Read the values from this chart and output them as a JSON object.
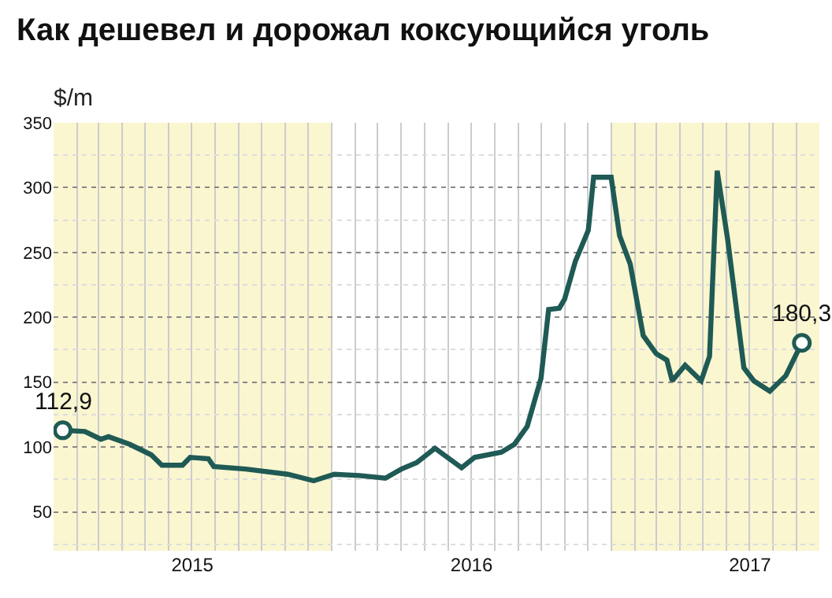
{
  "chart_data": {
    "type": "line",
    "title": "Как дешевел и дорожал коксующийся уголь",
    "ylabel": "$/m",
    "x": [
      "2015-01-13",
      "2015-02-11",
      "2015-03-04",
      "2015-03-14",
      "2015-04-11",
      "2015-05-09",
      "2015-05-23",
      "2015-06-19",
      "2015-06-29",
      "2015-07-23",
      "2015-07-30",
      "2015-09-10",
      "2015-11-04",
      "2015-12-08",
      "2016-01-04",
      "2016-02-06",
      "2016-03-11",
      "2016-04-01",
      "2016-04-21",
      "2016-05-15",
      "2016-06-19",
      "2016-07-06",
      "2016-08-10",
      "2016-08-27",
      "2016-09-13",
      "2016-10-01",
      "2016-10-11",
      "2016-10-25",
      "2016-11-01",
      "2016-11-15",
      "2016-12-02",
      "2016-12-09",
      "2017-01-01",
      "2017-01-12",
      "2017-01-26",
      "2017-02-12",
      "2017-03-01",
      "2017-03-15",
      "2017-03-22",
      "2017-04-08",
      "2017-04-29",
      "2017-05-10",
      "2017-05-20",
      "2017-06-03",
      "2017-06-24",
      "2017-07-07",
      "2017-07-28",
      "2017-08-18",
      "2017-09-08"
    ],
    "series": [
      {
        "color": "#1f5a55",
        "values": [
          112.9,
          112,
          106,
          108,
          102,
          94,
          86,
          86,
          92,
          91,
          85,
          83,
          79,
          74,
          79,
          78,
          76,
          83,
          88,
          99,
          84,
          92,
          96,
          102,
          116,
          153,
          206,
          207,
          214,
          243,
          267,
          308,
          308,
          263,
          241,
          186,
          172,
          167,
          151,
          163,
          151,
          170,
          313,
          259,
          161,
          151,
          143,
          155,
          180.3
        ]
      }
    ],
    "xlim": [
      "2015-01-01",
      "2017-10-01"
    ],
    "xticks": [
      {
        "value": "2015-07-02",
        "label": "2015"
      },
      {
        "value": "2016-07-02",
        "label": "2016"
      },
      {
        "value": "2017-07-02",
        "label": "2017"
      }
    ],
    "ylim": [
      20,
      350
    ],
    "yticks": [
      50,
      100,
      150,
      200,
      250,
      300,
      350
    ],
    "grid": true,
    "marker": "none",
    "line_style": "solid",
    "bands": [
      {
        "axis": "x",
        "from": "2015-01-01",
        "to": "2016-01-01",
        "color": "#faf6d0"
      },
      {
        "axis": "x",
        "from": "2017-01-01",
        "to": "2017-10-01",
        "color": "#faf6d0"
      }
    ],
    "annotations": [
      {
        "text": "112,9",
        "x": "2015-01-13",
        "y": 112.9
      },
      {
        "text": "180,3",
        "x": "2017-09-08",
        "y": 180.3
      }
    ]
  }
}
